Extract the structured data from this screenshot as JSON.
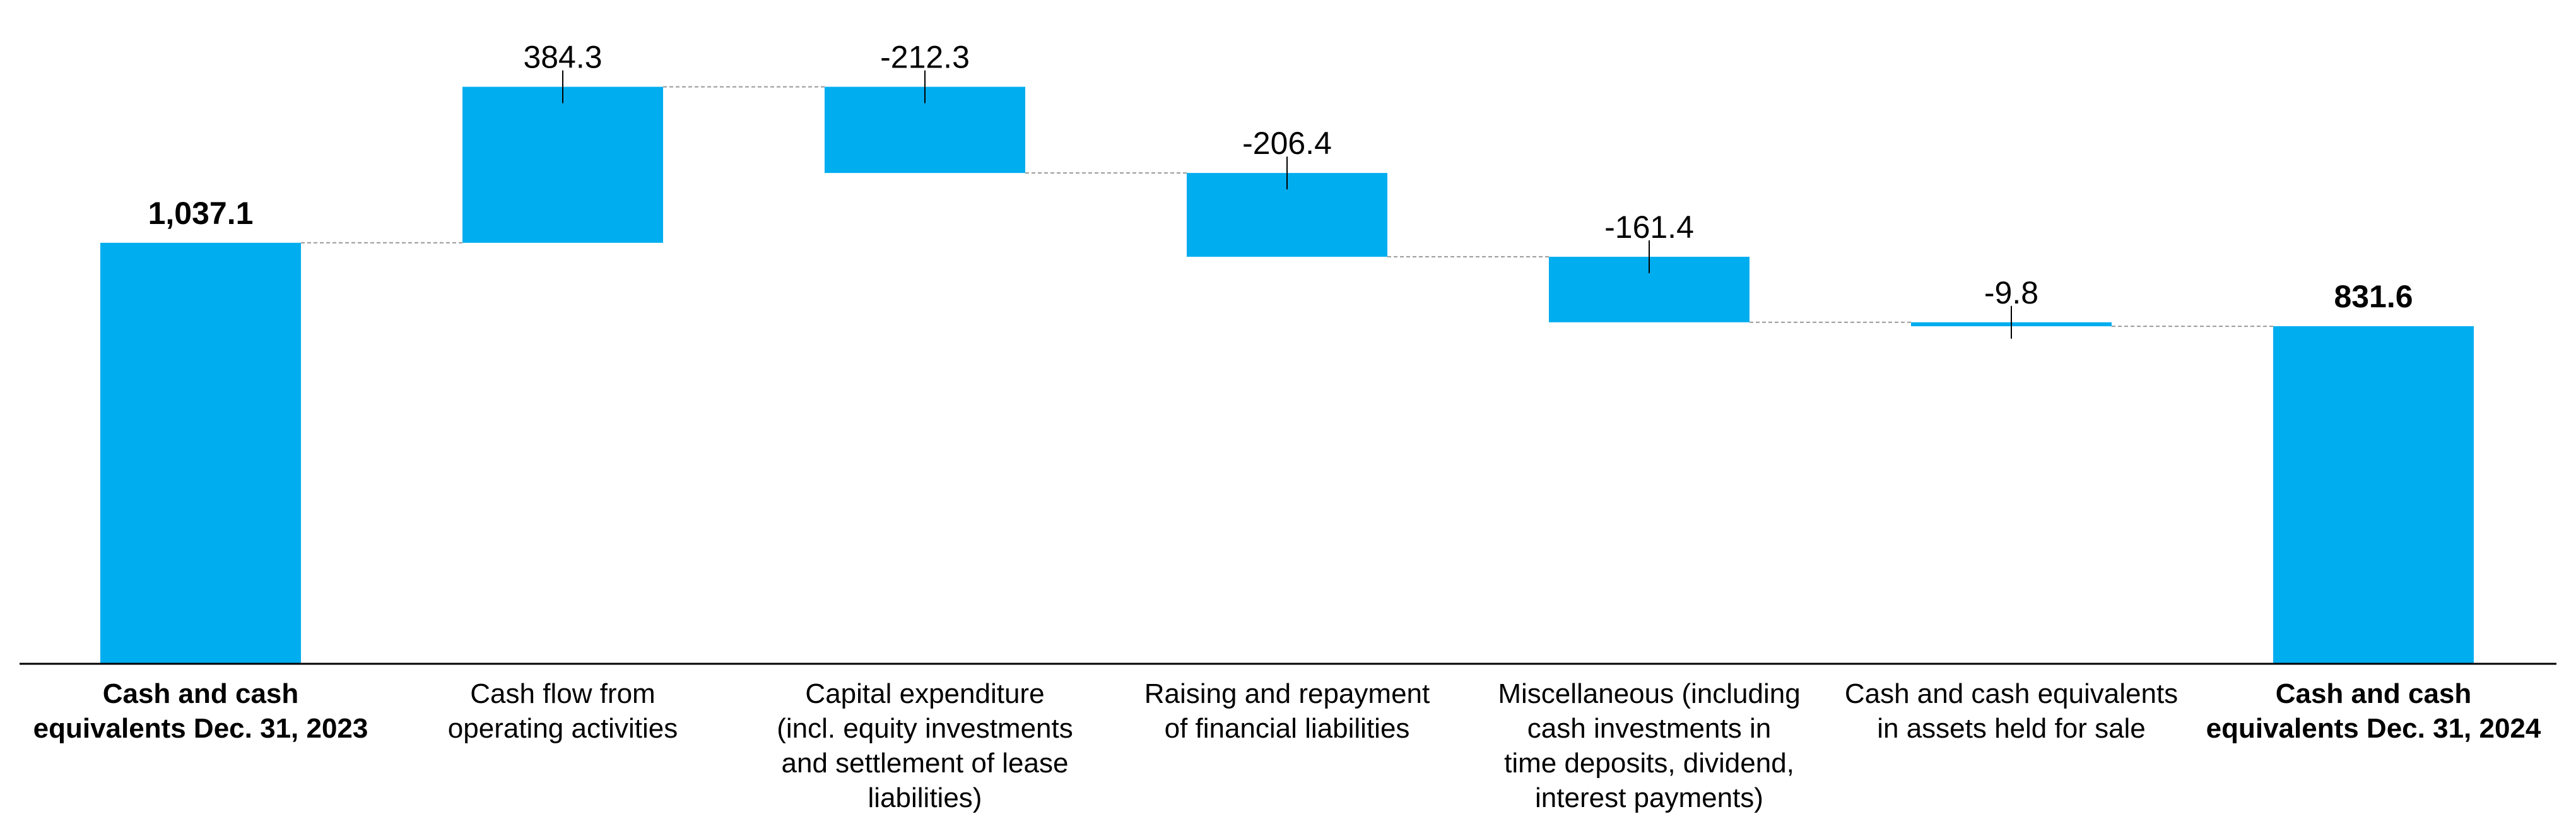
{
  "chart_data": {
    "type": "waterfall",
    "categories": [
      "Cash and cash\nequivalents Dec. 31, 2023",
      "Cash flow from\noperating activities",
      "Capital expenditure\n(incl. equity investments\nand settlement of lease\nliabilities)",
      "Raising and repayment\nof financial liabilities",
      "Miscellaneous (including\ncash investments in\ntime deposits, dividend,\ninterest payments)",
      "Cash and cash equivalents\nin assets held for sale",
      "Cash and cash\nequivalents Dec. 31, 2024"
    ],
    "values": [
      1037.1,
      384.3,
      -212.3,
      -206.4,
      -161.4,
      -9.8,
      831.6
    ],
    "value_labels": [
      "1,037.1",
      "384.3",
      "-212.3",
      "-206.4",
      "-161.4",
      "-9.8",
      "831.6"
    ],
    "color": "#00adef",
    "ylim": [
      0,
      1500
    ]
  }
}
